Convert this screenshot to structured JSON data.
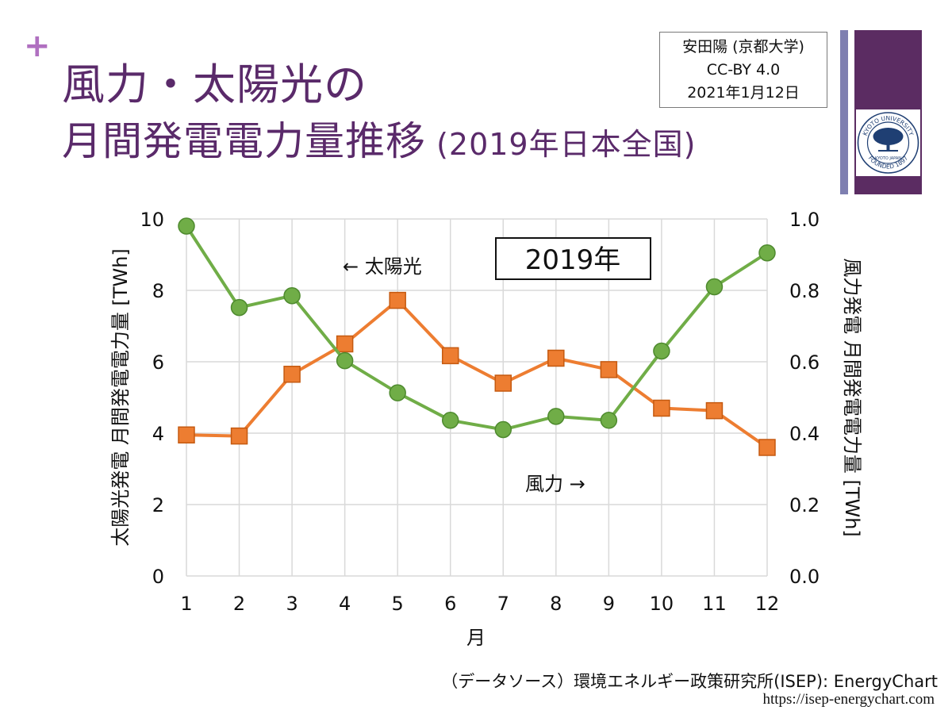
{
  "slide": {
    "plus_symbol": "+",
    "title_line1": "風力・太陽光の",
    "title_line2_main": "月間発電電力量推移",
    "title_line2_sub": " (2019年日本全国)",
    "credit": {
      "author": "安田陽 (京都大学)",
      "license": "CC-BY 4.0",
      "date": "2021年1月12日"
    },
    "logo": {
      "top_text": "KYOTO UNIVERSITY",
      "bottom_text": "FOUNDED 1897",
      "center_text": "KYOTO JAPAN"
    },
    "source": "（データソース）環境エネルギー政策研究所(ISEP): EnergyChart",
    "url": "https://isep-energychart.com"
  },
  "colors": {
    "solar": "#ed7d31",
    "solar_stroke": "#c55a11",
    "wind": "#70ad47",
    "wind_stroke": "#4e8a2e",
    "grid": "#d9d9d9",
    "title": "#5a2a6a"
  },
  "chart_data": {
    "type": "line",
    "categories": [
      "1",
      "2",
      "3",
      "4",
      "5",
      "6",
      "7",
      "8",
      "9",
      "10",
      "11",
      "12"
    ],
    "xlabel": "月",
    "ylabel_left": "太陽光発電 月間発電電力量 [TWh]",
    "ylabel_right": "風力発電 月間発電電力量 [TWh]",
    "ylim_left": [
      0,
      10
    ],
    "ylim_right": [
      0,
      1.0
    ],
    "yticks_left": [
      "0",
      "2",
      "4",
      "6",
      "8",
      "10"
    ],
    "yticks_right": [
      "0.0",
      "0.2",
      "0.4",
      "0.6",
      "0.8",
      "1.0"
    ],
    "grid": true,
    "year_box": "2019年",
    "series": [
      {
        "name": "太陽光",
        "axis": "left",
        "marker": "square",
        "annotation": "← 太陽光",
        "values": [
          3.95,
          3.92,
          5.65,
          6.5,
          7.72,
          6.17,
          5.4,
          6.1,
          5.78,
          4.7,
          4.63,
          3.6
        ]
      },
      {
        "name": "風力",
        "axis": "right",
        "marker": "circle",
        "annotation": "風力 →",
        "values": [
          0.98,
          0.752,
          0.785,
          0.603,
          0.513,
          0.436,
          0.41,
          0.447,
          0.436,
          0.63,
          0.81,
          0.905
        ]
      }
    ]
  }
}
